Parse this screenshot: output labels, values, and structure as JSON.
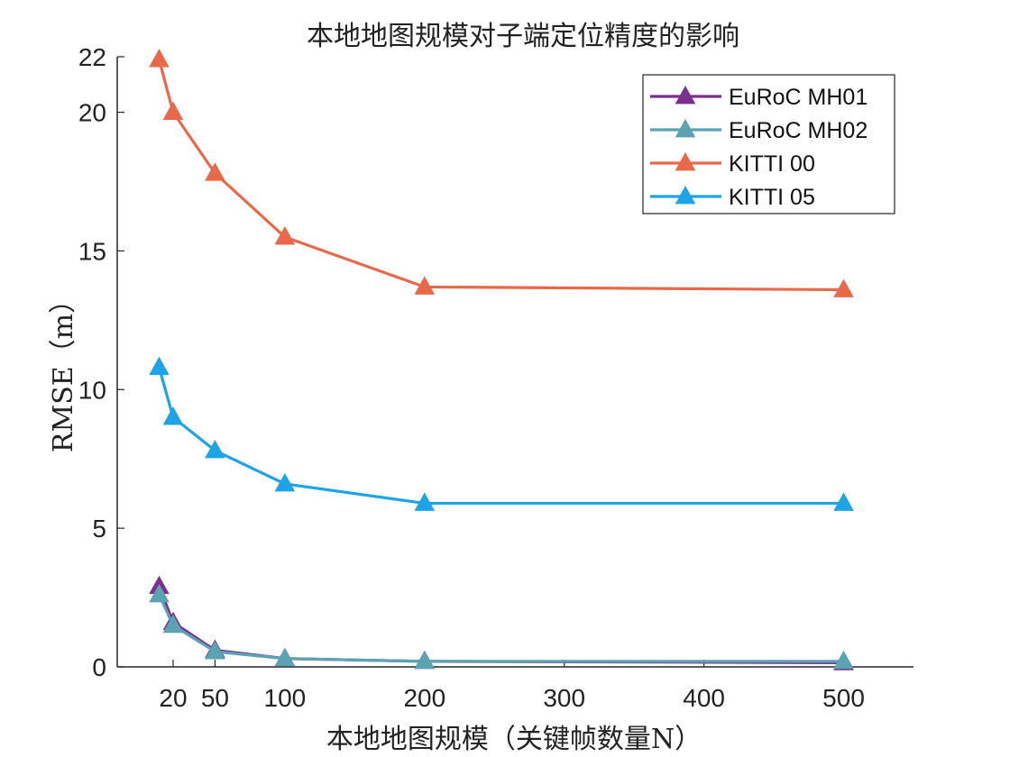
{
  "chart_data": {
    "type": "line",
    "title": "本地地图规模对子端定位精度的影响",
    "xlabel": "本地地图规模（关键帧数量N）",
    "ylabel": "RMSE（m）",
    "xlim": [
      -20,
      550
    ],
    "ylim": [
      0,
      22
    ],
    "xticks": [
      20,
      50,
      100,
      200,
      300,
      400,
      500
    ],
    "yticks": [
      0,
      5,
      10,
      15,
      20,
      22
    ],
    "legend_position": "top-right",
    "grid": false,
    "x": [
      10,
      20,
      50,
      100,
      200,
      500
    ],
    "series": [
      {
        "name": "EuRoC MH01",
        "color": "#7b2f8e",
        "values": [
          2.9,
          1.6,
          0.6,
          0.3,
          0.2,
          0.15
        ]
      },
      {
        "name": "EuRoC MH02",
        "color": "#5ba3b3",
        "values": [
          2.6,
          1.5,
          0.55,
          0.3,
          0.2,
          0.2
        ]
      },
      {
        "name": "KITTI 00",
        "color": "#e8694a",
        "values": [
          21.9,
          20.0,
          17.8,
          15.5,
          13.7,
          13.6
        ]
      },
      {
        "name": "KITTI 05",
        "color": "#1ea3e6",
        "values": [
          10.8,
          9.0,
          7.8,
          6.6,
          5.9,
          5.9
        ]
      }
    ]
  }
}
